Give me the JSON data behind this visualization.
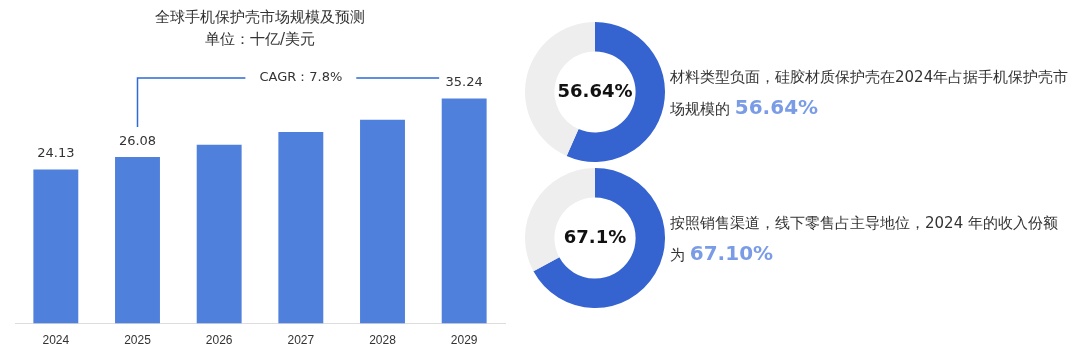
{
  "chart_data": [
    {
      "type": "bar",
      "title": "全球手机保护壳市场规模及预测",
      "subtitle": "单位：十亿/美元",
      "categories": [
        "2024",
        "2025",
        "2026",
        "2027",
        "2028",
        "2029"
      ],
      "values": [
        24.13,
        26.08,
        28.0,
        30.0,
        31.9,
        35.24
      ],
      "value_labels": [
        "24.13",
        "26.08",
        null,
        null,
        null,
        "35.24"
      ],
      "color": "#4f80dc",
      "legend": false,
      "grid": false,
      "tick_labels": "x",
      "annotations": [
        "CAGR：7.8%"
      ]
    },
    {
      "type": "donut",
      "categories": [
        null,
        null
      ],
      "values": [
        56.64,
        43.36
      ],
      "colors": [
        "#3563d0",
        "#eeeeee"
      ],
      "value_labels": [
        "56.64%",
        null
      ],
      "legend": false,
      "annotations": [
        "材料类型负面，硅胶材质保护壳在2024年占据手机保护壳市场规模的",
        "56.64%"
      ]
    },
    {
      "type": "donut",
      "categories": [
        null,
        null
      ],
      "values": [
        67.1,
        32.9
      ],
      "colors": [
        "#3563d0",
        "#eeeeee"
      ],
      "value_labels": [
        "67.1%",
        null
      ],
      "legend": false,
      "annotations": [
        "按照销售渠道，线下零售占主导地位，2024 年的收入份额为",
        "67.10%"
      ]
    }
  ]
}
